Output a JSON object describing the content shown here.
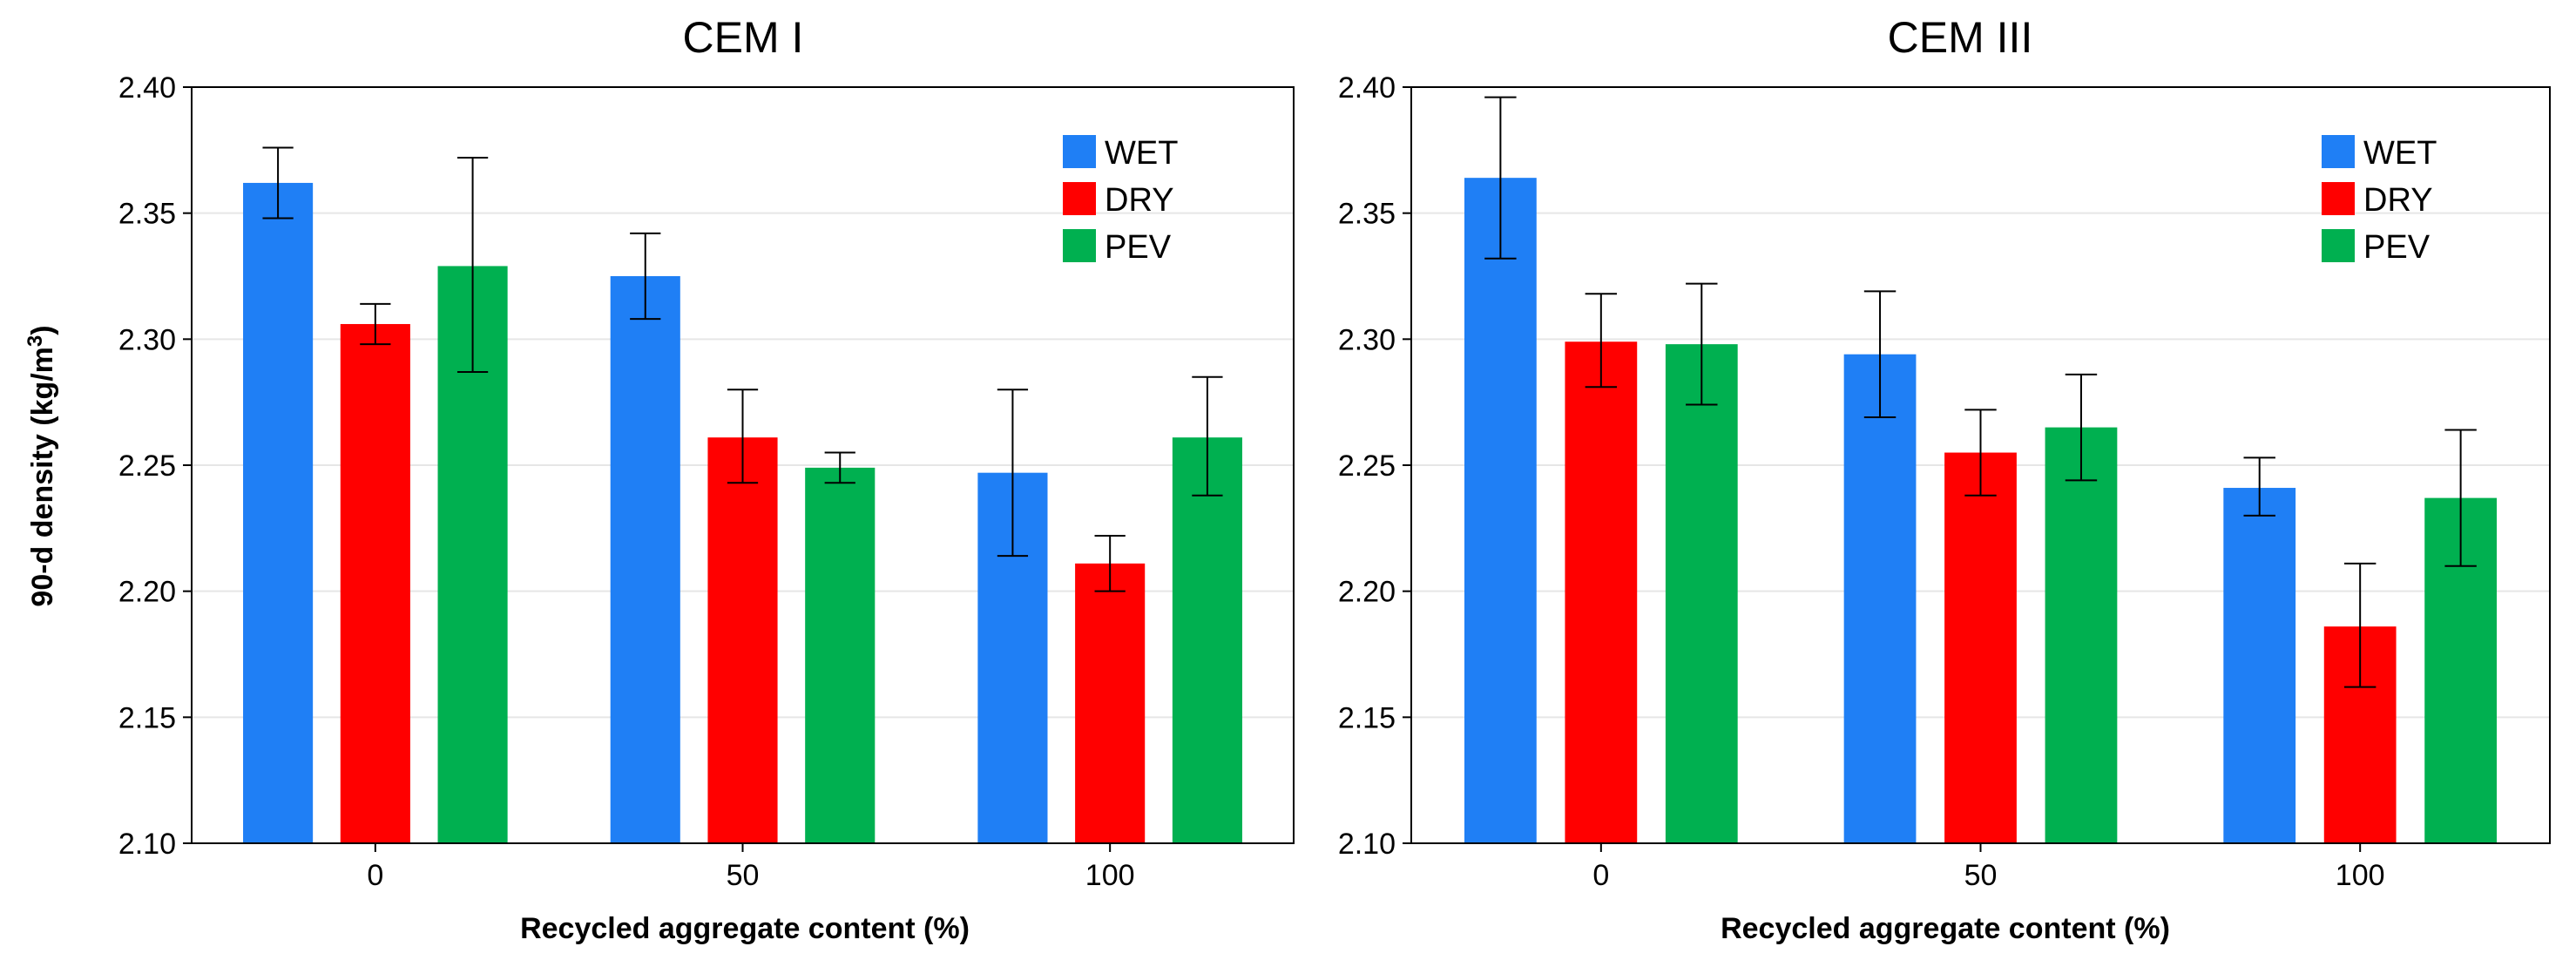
{
  "figure": {
    "ylabel_main": "90-d density (kg/m",
    "ylabel_sup": "3",
    "ylabel_close": ")"
  },
  "chart_data": [
    {
      "type": "bar",
      "title": "CEM I",
      "xlabel": "Recycled aggregate content (%)",
      "ylabel": "90-d density (kg/m3)",
      "categories": [
        "0",
        "50",
        "100"
      ],
      "ylim": [
        2.1,
        2.4
      ],
      "yticks": [
        "2.10",
        "2.15",
        "2.20",
        "2.25",
        "2.30",
        "2.35",
        "2.40"
      ],
      "legend_position": "top-right",
      "grid": true,
      "series": [
        {
          "name": "WET",
          "color": "#1f7ff5",
          "values": [
            2.362,
            2.325,
            2.247
          ],
          "err_low": [
            2.348,
            2.308,
            2.214
          ],
          "err_high": [
            2.376,
            2.342,
            2.28
          ]
        },
        {
          "name": "DRY",
          "color": "#ff0000",
          "values": [
            2.306,
            2.261,
            2.211
          ],
          "err_low": [
            2.298,
            2.243,
            2.2
          ],
          "err_high": [
            2.314,
            2.28,
            2.222
          ]
        },
        {
          "name": "PEV",
          "color": "#00b050",
          "values": [
            2.329,
            2.249,
            2.261
          ],
          "err_low": [
            2.287,
            2.243,
            2.238
          ],
          "err_high": [
            2.372,
            2.255,
            2.285
          ]
        }
      ]
    },
    {
      "type": "bar",
      "title": "CEM III",
      "xlabel": "Recycled aggregate content (%)",
      "ylabel": "90-d density (kg/m3)",
      "categories": [
        "0",
        "50",
        "100"
      ],
      "ylim": [
        2.1,
        2.4
      ],
      "yticks": [
        "2.10",
        "2.15",
        "2.20",
        "2.25",
        "2.30",
        "2.35",
        "2.40"
      ],
      "legend_position": "top-right",
      "grid": true,
      "series": [
        {
          "name": "WET",
          "color": "#1f7ff5",
          "values": [
            2.364,
            2.294,
            2.241
          ],
          "err_low": [
            2.332,
            2.269,
            2.23
          ],
          "err_high": [
            2.396,
            2.319,
            2.253
          ]
        },
        {
          "name": "DRY",
          "color": "#ff0000",
          "values": [
            2.299,
            2.255,
            2.186
          ],
          "err_low": [
            2.281,
            2.238,
            2.162
          ],
          "err_high": [
            2.318,
            2.272,
            2.211
          ]
        },
        {
          "name": "PEV",
          "color": "#00b050",
          "values": [
            2.298,
            2.265,
            2.237
          ],
          "err_low": [
            2.274,
            2.244,
            2.21
          ],
          "err_high": [
            2.322,
            2.286,
            2.264
          ]
        }
      ]
    }
  ]
}
